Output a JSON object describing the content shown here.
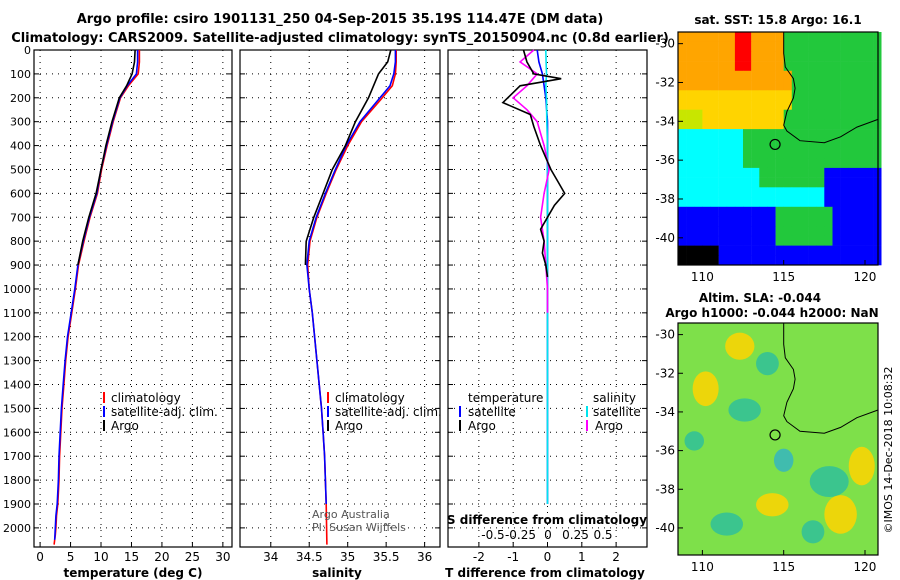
{
  "header": {
    "title_line1": "Argo profile: csiro 1901131_250 04-Sep-2015 35.19S 114.47E (DM data)",
    "title_line2": "Climatology: CARS2009. Satellite-adjusted climatology: synTS_20150904.nc (0.8d earlier)"
  },
  "side_label": "©IMOS 14-Dec-2018 10:08:32",
  "chart_data": [
    {
      "id": "temperature",
      "type": "line",
      "xlabel": "temperature (deg C)",
      "xlim": [
        -1,
        31.5
      ],
      "xticks": [
        0,
        5,
        10,
        15,
        20,
        25,
        30
      ],
      "ylim": [
        2080,
        0
      ],
      "yticks": [
        0,
        100,
        200,
        300,
        400,
        500,
        600,
        700,
        800,
        900,
        1000,
        1100,
        1200,
        1300,
        1400,
        1500,
        1600,
        1700,
        1800,
        1900,
        2000
      ],
      "grid": true,
      "legend": {
        "placement": "center",
        "entries": [
          {
            "label": "climatology",
            "color": "#ff0000"
          },
          {
            "label": "satellite-adj. clim.",
            "color": "#0000ff"
          },
          {
            "label": "Argo",
            "color": "#000000"
          }
        ]
      },
      "series": [
        {
          "color": "#ff0000",
          "x": [
            16.3,
            16.3,
            16.1,
            14.5,
            13.2,
            12.0,
            11.0,
            10.1,
            9.4,
            8.2,
            7.2,
            6.3,
            5.8,
            5.2,
            4.6,
            4.2,
            3.9,
            3.6,
            3.4,
            3.2,
            3.1,
            2.9,
            2.7,
            2.6,
            2.5,
            2.4,
            2.3
          ],
          "y": [
            0,
            50,
            100,
            150,
            200,
            300,
            400,
            500,
            600,
            700,
            800,
            900,
            1000,
            1100,
            1200,
            1300,
            1400,
            1500,
            1600,
            1700,
            1800,
            1900,
            1950,
            2000,
            2030,
            2050,
            2070
          ]
        },
        {
          "color": "#0000ff",
          "x": [
            16.0,
            16.0,
            15.8,
            14.3,
            13.1,
            11.9,
            10.9,
            10.0,
            9.3,
            8.1,
            7.1,
            6.2,
            5.7,
            5.1,
            4.5,
            4.1,
            3.8,
            3.5,
            3.3,
            3.1,
            3.0,
            2.8,
            2.6,
            2.5,
            2.4
          ],
          "y": [
            0,
            50,
            100,
            150,
            200,
            300,
            400,
            500,
            600,
            700,
            800,
            900,
            1000,
            1100,
            1200,
            1300,
            1400,
            1500,
            1600,
            1700,
            1800,
            1900,
            1950,
            2000,
            2050
          ]
        },
        {
          "color": "#000000",
          "x": [
            15.6,
            15.5,
            15.1,
            14.2,
            13.0,
            11.8,
            10.8,
            10.0,
            9.2,
            8.0,
            7.0,
            6.2
          ],
          "y": [
            0,
            50,
            100,
            150,
            200,
            300,
            400,
            500,
            600,
            700,
            800,
            900
          ]
        }
      ]
    },
    {
      "id": "salinity",
      "type": "line",
      "xlabel": "salinity",
      "xlim": [
        33.6,
        36.2
      ],
      "xticks": [
        34,
        34.5,
        35,
        35.5,
        36
      ],
      "ylim": [
        2080,
        0
      ],
      "grid": true,
      "legend": {
        "placement": "center",
        "entries": [
          {
            "label": "climatology",
            "color": "#ff0000"
          },
          {
            "label": "satellite-adj. clim.",
            "color": "#0000ff"
          },
          {
            "label": "Argo",
            "color": "#000000"
          }
        ]
      },
      "annotation_line1": "Argo Australia",
      "annotation_line2": "PI: Susan Wijffels",
      "series": [
        {
          "color": "#ff0000",
          "x": [
            35.63,
            35.63,
            35.62,
            35.58,
            35.45,
            35.18,
            35.0,
            34.85,
            34.72,
            34.6,
            34.51,
            34.48,
            34.5,
            34.54,
            34.57,
            34.6,
            34.63,
            34.66,
            34.68,
            34.7,
            34.71,
            34.72,
            34.73
          ],
          "y": [
            0,
            50,
            100,
            150,
            200,
            300,
            400,
            500,
            600,
            700,
            800,
            900,
            1000,
            1100,
            1200,
            1300,
            1400,
            1500,
            1600,
            1700,
            1800,
            1900,
            2070
          ]
        },
        {
          "color": "#0000ff",
          "x": [
            35.62,
            35.62,
            35.6,
            35.55,
            35.42,
            35.16,
            34.98,
            34.84,
            34.71,
            34.59,
            34.5,
            34.47,
            34.5,
            34.54,
            34.57,
            34.6,
            34.63,
            34.66,
            34.68,
            34.7,
            34.71,
            34.72
          ],
          "y": [
            0,
            50,
            100,
            150,
            200,
            300,
            400,
            500,
            600,
            700,
            800,
            900,
            1000,
            1100,
            1200,
            1300,
            1400,
            1500,
            1600,
            1700,
            1800,
            1900
          ]
        },
        {
          "color": "#000000",
          "x": [
            35.56,
            35.52,
            35.4,
            35.27,
            35.1,
            34.97,
            34.8,
            34.68,
            34.56,
            34.46,
            34.45
          ],
          "y": [
            0,
            50,
            100,
            200,
            300,
            400,
            500,
            600,
            700,
            800,
            900
          ]
        }
      ]
    },
    {
      "id": "differences",
      "type": "line",
      "xlabel": "T difference from climatology",
      "xlim": [
        -2.9,
        2.9
      ],
      "xticks": [
        -2,
        -1,
        0,
        1,
        2
      ],
      "ylim": [
        2080,
        0
      ],
      "grid": true,
      "secondary_axis": {
        "label": "S difference from climatology",
        "ticks": [
          -0.5,
          -0.25,
          0,
          0.25,
          0.5
        ],
        "tick_labels": [
          "-0.5",
          "-0.25",
          "0",
          "0.25",
          "0.5"
        ]
      },
      "legend_temperature": {
        "title": "temperature",
        "entries": [
          {
            "label": "satellite",
            "color": "#0000ff"
          },
          {
            "label": "Argo",
            "color": "#000000"
          }
        ]
      },
      "legend_salinity": {
        "title": "salinity",
        "entries": [
          {
            "label": "satellite",
            "color": "#00e5ee"
          },
          {
            "label": "Argo",
            "color": "#ff00ff"
          }
        ]
      },
      "series": [
        {
          "color": "#0000ff",
          "x": [
            -0.3,
            -0.25,
            -0.15,
            -0.1,
            -0.05,
            0.0,
            0.0,
            0.0,
            0.0,
            0.0,
            0.0,
            0.0,
            0.0,
            0.0,
            0.0,
            0.0,
            0.0,
            0.0,
            0.0,
            0.0,
            0.0,
            0.0
          ],
          "y": [
            0,
            50,
            100,
            150,
            200,
            300,
            400,
            500,
            600,
            700,
            800,
            900,
            1000,
            1100,
            1200,
            1300,
            1400,
            1500,
            1600,
            1700,
            1800,
            1900
          ]
        },
        {
          "color": "#00e5ee",
          "x": [
            -0.05,
            -0.04,
            -0.03,
            -0.05,
            -0.03,
            -0.02,
            0.0,
            0.0,
            0.0,
            0.0,
            0.0,
            0.0,
            0.0,
            0.0,
            0.0,
            0.0,
            0.0,
            0.0,
            0.0,
            0.0,
            0.0,
            0.0
          ],
          "y": [
            0,
            50,
            100,
            150,
            200,
            300,
            400,
            500,
            600,
            700,
            800,
            900,
            1000,
            1100,
            1200,
            1300,
            1400,
            1500,
            1600,
            1700,
            1800,
            1900
          ]
        },
        {
          "color": "#ff00ff",
          "x": [
            -0.4,
            -0.8,
            -0.3,
            -0.6,
            -1.0,
            -0.6,
            -0.3,
            -0.1,
            0.05,
            -0.1,
            -0.2,
            -0.1,
            -0.05,
            0.0,
            0.0
          ],
          "y": [
            0,
            50,
            100,
            150,
            200,
            250,
            300,
            400,
            500,
            600,
            700,
            800,
            900,
            1000,
            1100
          ]
        },
        {
          "color": "#000000",
          "x": [
            -0.7,
            -0.6,
            -0.4,
            0.4,
            -0.8,
            -1.3,
            -0.5,
            -0.4,
            -0.2,
            0.1,
            0.3,
            0.5,
            0.2,
            0.0,
            -0.2,
            -0.1,
            -0.15,
            -0.05,
            0.0
          ],
          "y": [
            0,
            50,
            100,
            120,
            150,
            220,
            270,
            320,
            400,
            500,
            550,
            600,
            650,
            700,
            750,
            800,
            850,
            900,
            950
          ]
        }
      ]
    },
    {
      "id": "sst_map",
      "type": "heatmap",
      "title": "sat. SST: 15.8 Argo: 16.1",
      "xticks": [
        110,
        115,
        120
      ],
      "yticks": [
        -30,
        -32,
        -34,
        -36,
        -38,
        -40
      ],
      "xlim": [
        108.5,
        120.8
      ],
      "ylim": [
        -41.4,
        -29.4
      ],
      "marker": {
        "lon": 114.47,
        "lat": -35.19
      },
      "colors": {
        "red": "#ff0000",
        "orange": "#ffa500",
        "yellow": "#ffd400",
        "yellow_green": "#c8e600",
        "green": "#22c83c",
        "cyan": "#00ffff",
        "blue": "#0000ff",
        "land": "#000000"
      }
    },
    {
      "id": "sla_map",
      "type": "heatmap",
      "title_line1": "Altim. SLA: -0.044",
      "title_line2": "Argo h1000: -0.044 h2000: NaN",
      "xticks": [
        110,
        115,
        120
      ],
      "yticks": [
        -30,
        -32,
        -34,
        -36,
        -38,
        -40
      ],
      "xlim": [
        108.5,
        120.8
      ],
      "ylim": [
        -41.4,
        -29.4
      ],
      "marker": {
        "lon": 114.47,
        "lat": -35.19
      },
      "colors": {
        "base": "#7ee04a",
        "high": "#ffd400",
        "low": "#2fbf9a",
        "lower": "#35b5c0"
      }
    }
  ]
}
